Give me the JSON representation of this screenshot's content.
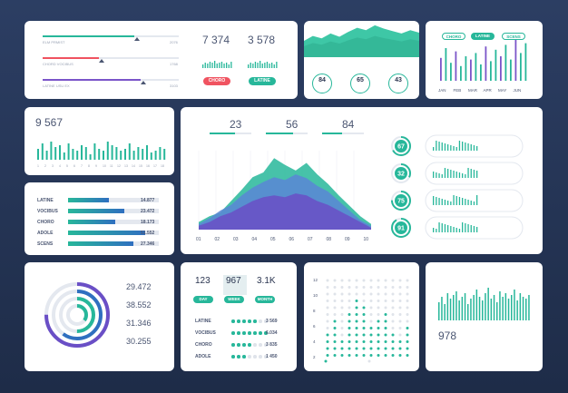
{
  "panel1": {
    "bars": [
      {
        "label": "ELM PRMIST",
        "value": "2076",
        "fill": 0.84,
        "color": "#27b79a"
      },
      {
        "label": "CHORD VOCIBUS",
        "value": "1768",
        "fill": 0.52,
        "color": "#f05360"
      },
      {
        "label": "LATINE USU EX",
        "value": "3103",
        "fill": 0.9,
        "color": "#7b55c9"
      }
    ],
    "stats": [
      {
        "value": "7 374"
      },
      {
        "value": "3 578"
      }
    ],
    "buttons": [
      {
        "label": "CHORO",
        "color": "#f05360"
      },
      {
        "label": "LATINE",
        "color": "#27b79a"
      }
    ]
  },
  "panel2": {
    "area": [
      40,
      52,
      46,
      58,
      50,
      62,
      72,
      66,
      78,
      70,
      64,
      58,
      66,
      60
    ],
    "circles": [
      {
        "value": "84"
      },
      {
        "value": "65"
      },
      {
        "value": "43"
      }
    ]
  },
  "panel3": {
    "tabs": [
      "CHORO",
      "LATINE",
      "SCENS"
    ],
    "months": [
      "JAN",
      "FEB",
      "MAR",
      "APR",
      "MAY",
      "JUN"
    ],
    "bars": [
      28,
      40,
      22,
      36,
      18,
      30,
      26,
      34,
      20,
      42,
      24,
      38,
      30,
      44,
      26,
      50,
      34,
      46
    ]
  },
  "panel4": {
    "value": "9 567",
    "bars": [
      12,
      18,
      10,
      20,
      14,
      16,
      8,
      18,
      12,
      10,
      16,
      14,
      6,
      18,
      12,
      10,
      20,
      16,
      14,
      10,
      12,
      18,
      10,
      14,
      12,
      16,
      8,
      10,
      14,
      12
    ],
    "ticks": [
      "1",
      "2",
      "3",
      "4",
      "5",
      "6",
      "7",
      "8",
      "9",
      "10",
      "11",
      "12",
      "13",
      "14",
      "15",
      "16",
      "17",
      "18"
    ]
  },
  "panel5": {
    "rows": [
      {
        "label": "LATINE",
        "value": "14.877",
        "fill": 0.45
      },
      {
        "label": "VOCIBUS",
        "value": "23.472",
        "fill": 0.62
      },
      {
        "label": "CHORO",
        "value": "18.173",
        "fill": 0.52
      },
      {
        "label": "ADOLE",
        "value": "51.552",
        "fill": 0.85
      },
      {
        "label": "SCENS",
        "value": "27.346",
        "fill": 0.72
      }
    ]
  },
  "main": {
    "stats": [
      {
        "value": "23"
      },
      {
        "value": "56"
      },
      {
        "value": "84"
      }
    ],
    "xticks": [
      "01",
      "02",
      "03",
      "04",
      "05",
      "06",
      "07",
      "08",
      "09",
      "10"
    ],
    "series": [
      {
        "color": "#27b79a",
        "values": [
          8,
          14,
          18,
          30,
          42,
          55,
          60,
          75,
          68,
          62,
          70,
          58,
          48,
          36,
          25,
          14,
          6
        ]
      },
      {
        "color": "#5a86d6",
        "values": [
          6,
          12,
          20,
          26,
          36,
          44,
          50,
          55,
          52,
          58,
          54,
          46,
          40,
          30,
          20,
          10,
          4
        ]
      },
      {
        "color": "#6a4fc6",
        "values": [
          4,
          8,
          14,
          18,
          24,
          30,
          34,
          36,
          34,
          38,
          36,
          30,
          26,
          20,
          14,
          8,
          2
        ]
      }
    ],
    "rings": [
      {
        "value": "67",
        "pct": 0.67
      },
      {
        "value": "32",
        "pct": 0.32
      },
      {
        "value": "75",
        "pct": 0.75
      },
      {
        "value": "91",
        "pct": 0.91
      }
    ]
  },
  "panel7": {
    "values": [
      {
        "value": "29.472"
      },
      {
        "value": "38.552"
      },
      {
        "value": "31.346"
      },
      {
        "value": "30.255"
      }
    ],
    "rings": [
      0.75,
      0.6,
      0.5,
      0.35
    ]
  },
  "panel8": {
    "stats": [
      {
        "value": "123",
        "tab": "DAY"
      },
      {
        "value": "967",
        "tab": "WEEK"
      },
      {
        "value": "3.1K",
        "tab": "MONTH"
      }
    ],
    "rows": [
      {
        "label": "LATINE",
        "value": "3 569",
        "dots": 5
      },
      {
        "label": "VOCIBUS",
        "value": "6.034",
        "dots": 7
      },
      {
        "label": "CHORO",
        "value": "3 835",
        "dots": 4
      },
      {
        "label": "ADOLE",
        "value": "1 450",
        "dots": 3
      }
    ]
  },
  "panel9": {
    "yticks": [
      "12",
      "10",
      "8",
      "6",
      "4",
      "2"
    ],
    "cols": [
      4,
      6,
      3,
      7,
      9,
      8,
      5,
      6,
      7,
      4,
      3,
      5
    ],
    "rows": 12
  },
  "panel10": {
    "value": "978",
    "bars": [
      20,
      26,
      18,
      30,
      24,
      28,
      32,
      22,
      26,
      30,
      18,
      24,
      28,
      34,
      26,
      22,
      30,
      36,
      24,
      28,
      20,
      32,
      26,
      30,
      24,
      28,
      34,
      22,
      30,
      26,
      24,
      28
    ]
  }
}
